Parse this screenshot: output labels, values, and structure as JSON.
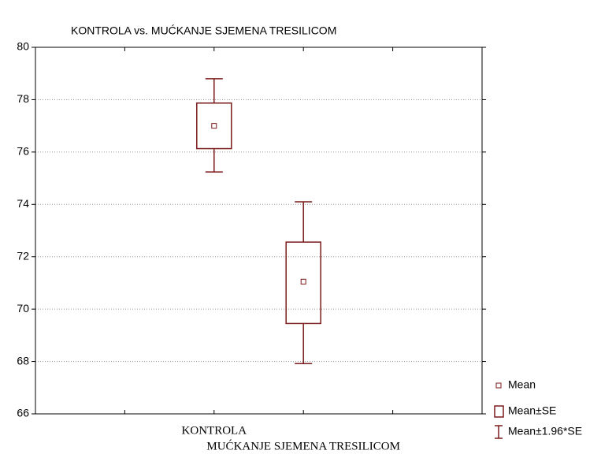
{
  "chart_data": {
    "type": "box",
    "title": "KONTROLA  vs. MUĆKANJE SJEMENA TRESILICOM",
    "categories": [
      "KONTROLA",
      "MUĆKANJE SJEMENA TRESILICOM"
    ],
    "boxes": [
      {
        "mean": 77.0,
        "box": [
          76.13,
          77.87
        ],
        "whisker": [
          75.24,
          78.8
        ]
      },
      {
        "mean": 71.05,
        "box": [
          69.45,
          72.56
        ],
        "whisker": [
          67.92,
          74.1
        ]
      }
    ],
    "color": "#7b1a1a",
    "ylim": [
      66,
      80
    ],
    "yticks": [
      66,
      68,
      70,
      72,
      74,
      76,
      78,
      80
    ],
    "grid": true,
    "legend": [
      "Mean",
      "Mean±SE",
      "Mean±1.96*SE"
    ],
    "legend_position": "lower right"
  }
}
